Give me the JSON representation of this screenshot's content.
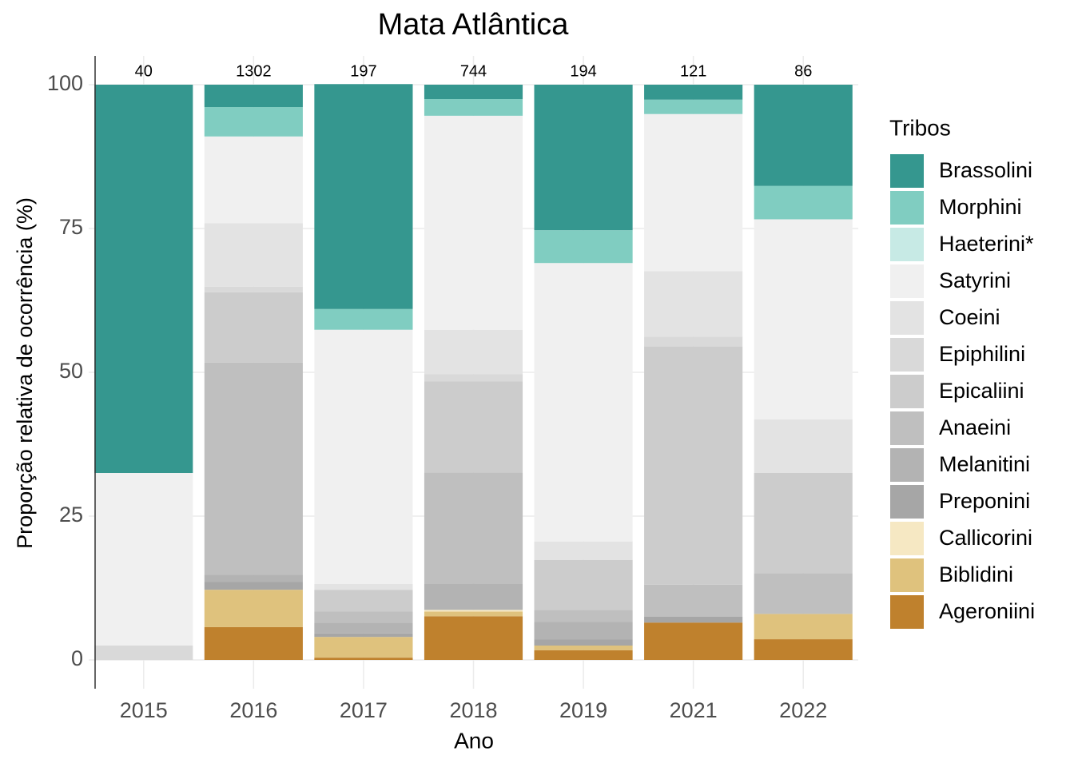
{
  "chart_data": {
    "type": "stacked_bar_100",
    "title": "Mata Atlântica",
    "x_label": "Ano",
    "y_label": "Proporção relativa de ocorrência (%)",
    "legend_title": "Tribos",
    "categories": [
      "2015",
      "2016",
      "2017",
      "2018",
      "2019",
      "2021",
      "2022"
    ],
    "totals": [
      40,
      1302,
      197,
      744,
      194,
      121,
      86
    ],
    "ylim": [
      -5,
      105
    ],
    "yticks": [
      0,
      25,
      50,
      75,
      100
    ],
    "grid": true,
    "legend_position": "right",
    "series": [
      {
        "name": "Brassolini",
        "color": "#35978f",
        "values": [
          67.5,
          3.9,
          39.1,
          2.5,
          25.3,
          2.6,
          17.6
        ]
      },
      {
        "name": "Morphini",
        "color": "#80cdc1",
        "values": [
          0,
          5.1,
          3.6,
          2.9,
          5.7,
          2.5,
          5.8
        ]
      },
      {
        "name": "Haeterini*",
        "color": "#c7eae5",
        "values": [
          0,
          0,
          0,
          0,
          0,
          0,
          0
        ]
      },
      {
        "name": "Satyrini",
        "color": "#f0f0f0",
        "values": [
          30,
          15.1,
          44.2,
          37.2,
          48.4,
          27.3,
          34.8
        ]
      },
      {
        "name": "Coeini",
        "color": "#e3e3e3",
        "values": [
          0,
          11.0,
          1.0,
          7.7,
          3.2,
          11.4,
          9.3
        ]
      },
      {
        "name": "Epiphilini",
        "color": "#d9d9d9",
        "values": [
          2.5,
          1.0,
          0,
          1.3,
          0,
          1.7,
          0
        ]
      },
      {
        "name": "Epicaliini",
        "color": "#cccccc",
        "values": [
          0,
          12.2,
          3.8,
          15.8,
          8.7,
          41.4,
          17.4
        ]
      },
      {
        "name": "Anaeini",
        "color": "#bfbfbf",
        "values": [
          0,
          36.9,
          1.9,
          19.3,
          2.1,
          5.6,
          7.1
        ]
      },
      {
        "name": "Melanitini",
        "color": "#b3b3b3",
        "values": [
          0,
          1.2,
          1.9,
          4.6,
          3.0,
          0,
          0
        ]
      },
      {
        "name": "Preponini",
        "color": "#a6a6a6",
        "values": [
          0,
          1.4,
          0.6,
          0,
          1.1,
          1.0,
          0
        ]
      },
      {
        "name": "Callicorini",
        "color": "#f6e8c3",
        "values": [
          0,
          0,
          0,
          0.3,
          0,
          0,
          0
        ]
      },
      {
        "name": "Biblidini",
        "color": "#dfc27d",
        "values": [
          0,
          6.5,
          3.6,
          0.8,
          0.8,
          0,
          4.4
        ]
      },
      {
        "name": "Ageroniini",
        "color": "#bf812d",
        "values": [
          0,
          5.7,
          0.4,
          7.6,
          1.7,
          6.5,
          3.6
        ]
      }
    ]
  }
}
